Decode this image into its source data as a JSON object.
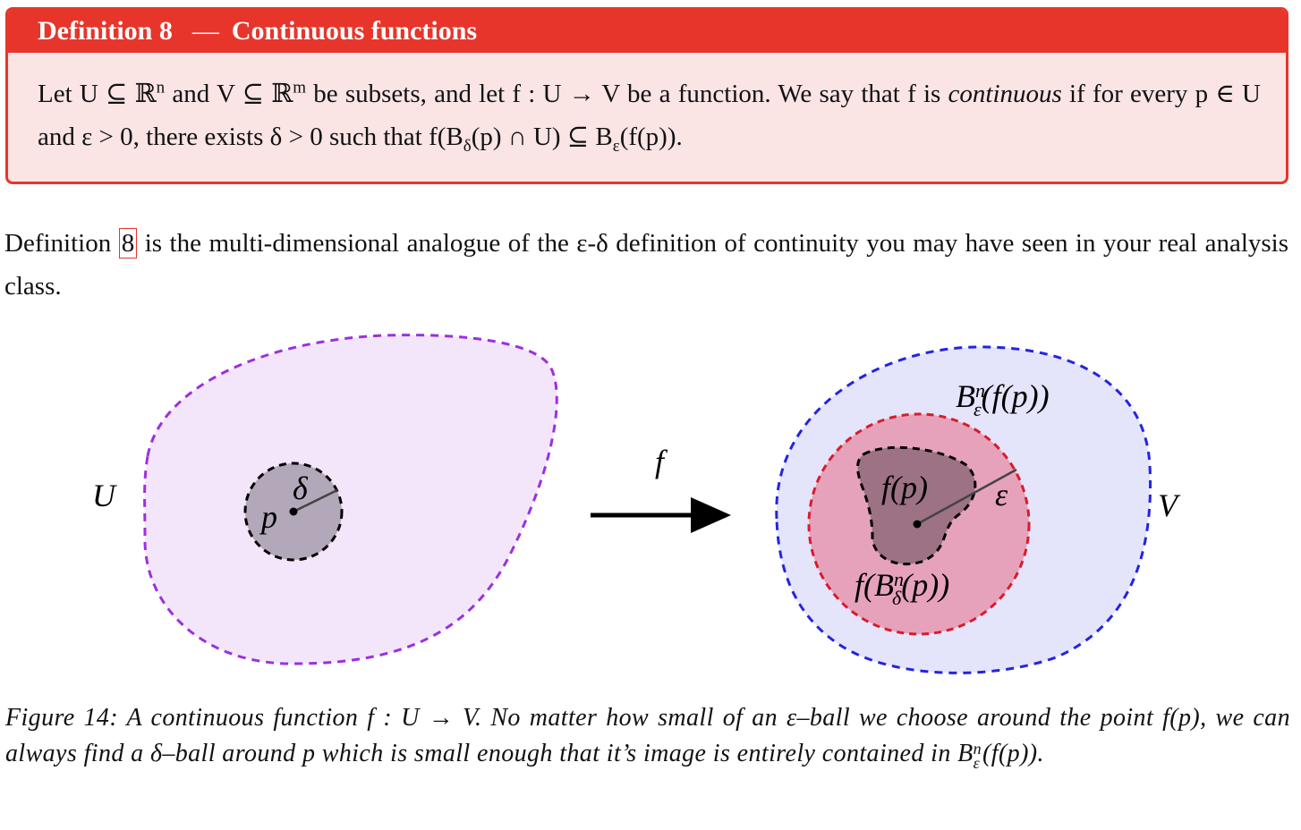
{
  "definition": {
    "label": "Definition 8",
    "dash": "—",
    "title": "Continuous functions",
    "body": [
      "Let U ⊆ ℝ",
      "n",
      " and V ⊆ ℝ",
      "m",
      " be subsets, and let f : U → V be a function. We say that f is ",
      "continuous",
      " if for every p ∈ U and ε > 0, there exists δ > 0 such that f(B",
      "δ",
      "(p) ∩ U) ⊆ B",
      "ε",
      "(f(p))."
    ]
  },
  "paragraph": [
    "Definition ",
    "8",
    " is the multi-dimensional analogue of the ε-δ definition of continuity you may have seen in your real analysis class."
  ],
  "figure": {
    "domain_label": "U",
    "point_label": "p",
    "delta_label": "δ",
    "map_label": "f",
    "codomain_label": "V",
    "image_point_label": "f(p)",
    "epsilon_label": "ε",
    "epsilon_ball_label": [
      "B",
      "n",
      "ε",
      "(f(‍p))"
    ],
    "image_ball_label": [
      "f(B",
      "n",
      "δ",
      "(p))"
    ]
  },
  "caption": {
    "label": "Figure 14:",
    "text": [
      " A continuous function f : U → V. No matter how small of an ε–ball we choose around the point f(p), we can always find a δ–ball around p which is small enough that it’s image is entirely contained in B",
      "n",
      "ε",
      "(f(p))."
    ]
  }
}
